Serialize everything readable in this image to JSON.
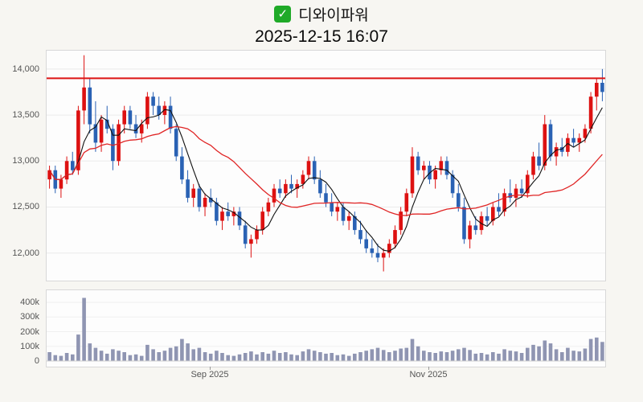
{
  "header": {
    "title": "디와이파워",
    "datetime": "2025-12-15 16:07",
    "check_icon": "✓"
  },
  "colors": {
    "up": "#dd1111",
    "down": "#2a62b4",
    "ma_short": "#111111",
    "ma_long": "#e02525",
    "resistance": "#dd1414",
    "volume": "#8f95b2",
    "grid": "#ebebeb",
    "icon_green": "#1faa28"
  },
  "chart_data": {
    "type": "candlestick+volume",
    "title": "디와이파워",
    "timestamp": "2025-12-15 16:07",
    "legend_position": "none",
    "grid": true,
    "price_axis": {
      "ticks": [
        14000,
        13500,
        13000,
        12500,
        12000
      ],
      "labels": [
        "14,000",
        "13,500",
        "13,000",
        "12,500",
        "12,000"
      ],
      "ylim": [
        11700,
        14200
      ]
    },
    "volume_axis": {
      "ticks": [
        400000,
        300000,
        200000,
        100000,
        0
      ],
      "labels": [
        "400k",
        "300k",
        "200k",
        "100k",
        "0"
      ],
      "vlim": [
        0,
        520000
      ]
    },
    "x_ticks": [
      {
        "label": "Sep 2025",
        "index": 28
      },
      {
        "label": "Nov 2025",
        "index": 66
      }
    ],
    "resistance_level": 13900,
    "overlays": [
      {
        "name": "MA-short",
        "period": 5,
        "color": "#111111"
      },
      {
        "name": "MA-long",
        "period": 20,
        "color": "#e02525"
      }
    ],
    "candles_format": [
      "open",
      "high",
      "low",
      "close",
      "volume"
    ],
    "candles": [
      [
        12800,
        12950,
        12700,
        12900,
        60000
      ],
      [
        12900,
        12950,
        12650,
        12700,
        40000
      ],
      [
        12700,
        12850,
        12600,
        12800,
        35000
      ],
      [
        12800,
        13050,
        12750,
        13000,
        55000
      ],
      [
        13000,
        13100,
        12850,
        12900,
        45000
      ],
      [
        12900,
        13600,
        12850,
        13550,
        180000
      ],
      [
        13550,
        14150,
        13400,
        13800,
        430000
      ],
      [
        13800,
        13900,
        13300,
        13400,
        120000
      ],
      [
        13400,
        13650,
        13100,
        13200,
        90000
      ],
      [
        13200,
        13500,
        13100,
        13450,
        70000
      ],
      [
        13450,
        13600,
        13300,
        13350,
        50000
      ],
      [
        13350,
        13400,
        12900,
        13000,
        80000
      ],
      [
        13000,
        13450,
        12950,
        13400,
        70000
      ],
      [
        13400,
        13600,
        13300,
        13550,
        60000
      ],
      [
        13550,
        13600,
        13350,
        13400,
        40000
      ],
      [
        13400,
        13500,
        13250,
        13300,
        45000
      ],
      [
        13300,
        13450,
        13200,
        13400,
        35000
      ],
      [
        13400,
        13750,
        13350,
        13700,
        110000
      ],
      [
        13700,
        13750,
        13500,
        13600,
        80000
      ],
      [
        13600,
        13700,
        13450,
        13500,
        60000
      ],
      [
        13500,
        13650,
        13400,
        13600,
        70000
      ],
      [
        13600,
        13700,
        13300,
        13350,
        90000
      ],
      [
        13350,
        13400,
        13000,
        13050,
        100000
      ],
      [
        13050,
        13150,
        12750,
        12800,
        150000
      ],
      [
        12800,
        12900,
        12550,
        12600,
        120000
      ],
      [
        12600,
        12750,
        12500,
        12700,
        80000
      ],
      [
        12700,
        12750,
        12450,
        12500,
        90000
      ],
      [
        12500,
        12650,
        12400,
        12600,
        60000
      ],
      [
        12600,
        12700,
        12500,
        12550,
        50000
      ],
      [
        12550,
        12600,
        12300,
        12350,
        70000
      ],
      [
        12350,
        12500,
        12250,
        12450,
        55000
      ],
      [
        12450,
        12550,
        12350,
        12400,
        40000
      ],
      [
        12400,
        12500,
        12300,
        12450,
        35000
      ],
      [
        12450,
        12500,
        12250,
        12300,
        45000
      ],
      [
        12300,
        12350,
        12050,
        12100,
        55000
      ],
      [
        12100,
        12200,
        11950,
        12150,
        65000
      ],
      [
        12150,
        12300,
        12100,
        12250,
        45000
      ],
      [
        12250,
        12500,
        12200,
        12450,
        60000
      ],
      [
        12450,
        12600,
        12400,
        12550,
        50000
      ],
      [
        12550,
        12750,
        12500,
        12700,
        70000
      ],
      [
        12700,
        12800,
        12600,
        12650,
        55000
      ],
      [
        12650,
        12800,
        12600,
        12750,
        60000
      ],
      [
        12750,
        12850,
        12650,
        12700,
        45000
      ],
      [
        12700,
        12800,
        12600,
        12750,
        40000
      ],
      [
        12750,
        12900,
        12700,
        12850,
        65000
      ],
      [
        12850,
        13050,
        12800,
        13000,
        80000
      ],
      [
        13000,
        13050,
        12750,
        12800,
        70000
      ],
      [
        12800,
        12900,
        12600,
        12650,
        60000
      ],
      [
        12650,
        12750,
        12500,
        12550,
        50000
      ],
      [
        12550,
        12650,
        12400,
        12450,
        55000
      ],
      [
        12450,
        12550,
        12350,
        12500,
        40000
      ],
      [
        12500,
        12550,
        12300,
        12350,
        45000
      ],
      [
        12350,
        12450,
        12250,
        12400,
        35000
      ],
      [
        12400,
        12450,
        12200,
        12250,
        50000
      ],
      [
        12250,
        12350,
        12100,
        12150,
        60000
      ],
      [
        12150,
        12250,
        12000,
        12050,
        70000
      ],
      [
        12050,
        12150,
        11950,
        12000,
        80000
      ],
      [
        12000,
        12100,
        11900,
        11950,
        90000
      ],
      [
        11950,
        12050,
        11800,
        12000,
        75000
      ],
      [
        12000,
        12150,
        11950,
        12100,
        60000
      ],
      [
        12100,
        12300,
        12050,
        12250,
        70000
      ],
      [
        12250,
        12500,
        12200,
        12450,
        85000
      ],
      [
        12450,
        12700,
        12400,
        12650,
        90000
      ],
      [
        12650,
        13150,
        12600,
        13050,
        150000
      ],
      [
        13050,
        13100,
        12850,
        12900,
        100000
      ],
      [
        12900,
        13000,
        12800,
        12950,
        70000
      ],
      [
        12950,
        13000,
        12750,
        12800,
        60000
      ],
      [
        12800,
        12950,
        12700,
        12900,
        55000
      ],
      [
        12900,
        13050,
        12850,
        13000,
        65000
      ],
      [
        13000,
        13050,
        12800,
        12850,
        60000
      ],
      [
        12850,
        12900,
        12600,
        12650,
        70000
      ],
      [
        12650,
        12750,
        12450,
        12500,
        80000
      ],
      [
        12500,
        12600,
        12100,
        12150,
        90000
      ],
      [
        12150,
        12350,
        12050,
        12300,
        75000
      ],
      [
        12300,
        12400,
        12200,
        12250,
        50000
      ],
      [
        12250,
        12450,
        12200,
        12400,
        55000
      ],
      [
        12400,
        12500,
        12300,
        12350,
        45000
      ],
      [
        12350,
        12550,
        12300,
        12500,
        60000
      ],
      [
        12500,
        12650,
        12400,
        12450,
        50000
      ],
      [
        12450,
        12700,
        12400,
        12650,
        80000
      ],
      [
        12650,
        12800,
        12550,
        12600,
        70000
      ],
      [
        12600,
        12750,
        12500,
        12700,
        65000
      ],
      [
        12700,
        12800,
        12600,
        12650,
        55000
      ],
      [
        12650,
        12900,
        12600,
        12850,
        90000
      ],
      [
        12850,
        13100,
        12800,
        13050,
        110000
      ],
      [
        13050,
        13200,
        12900,
        12950,
        100000
      ],
      [
        12950,
        13500,
        12900,
        13400,
        140000
      ],
      [
        13400,
        13450,
        13000,
        13050,
        120000
      ],
      [
        13050,
        13200,
        12950,
        13150,
        80000
      ],
      [
        13150,
        13250,
        13050,
        13100,
        60000
      ],
      [
        13100,
        13300,
        13050,
        13250,
        90000
      ],
      [
        13250,
        13350,
        13150,
        13200,
        70000
      ],
      [
        13200,
        13300,
        13100,
        13250,
        65000
      ],
      [
        13250,
        13400,
        13200,
        13350,
        85000
      ],
      [
        13350,
        13750,
        13300,
        13700,
        150000
      ],
      [
        13700,
        13900,
        13550,
        13850,
        160000
      ],
      [
        13850,
        14000,
        13650,
        13750,
        130000
      ]
    ]
  }
}
